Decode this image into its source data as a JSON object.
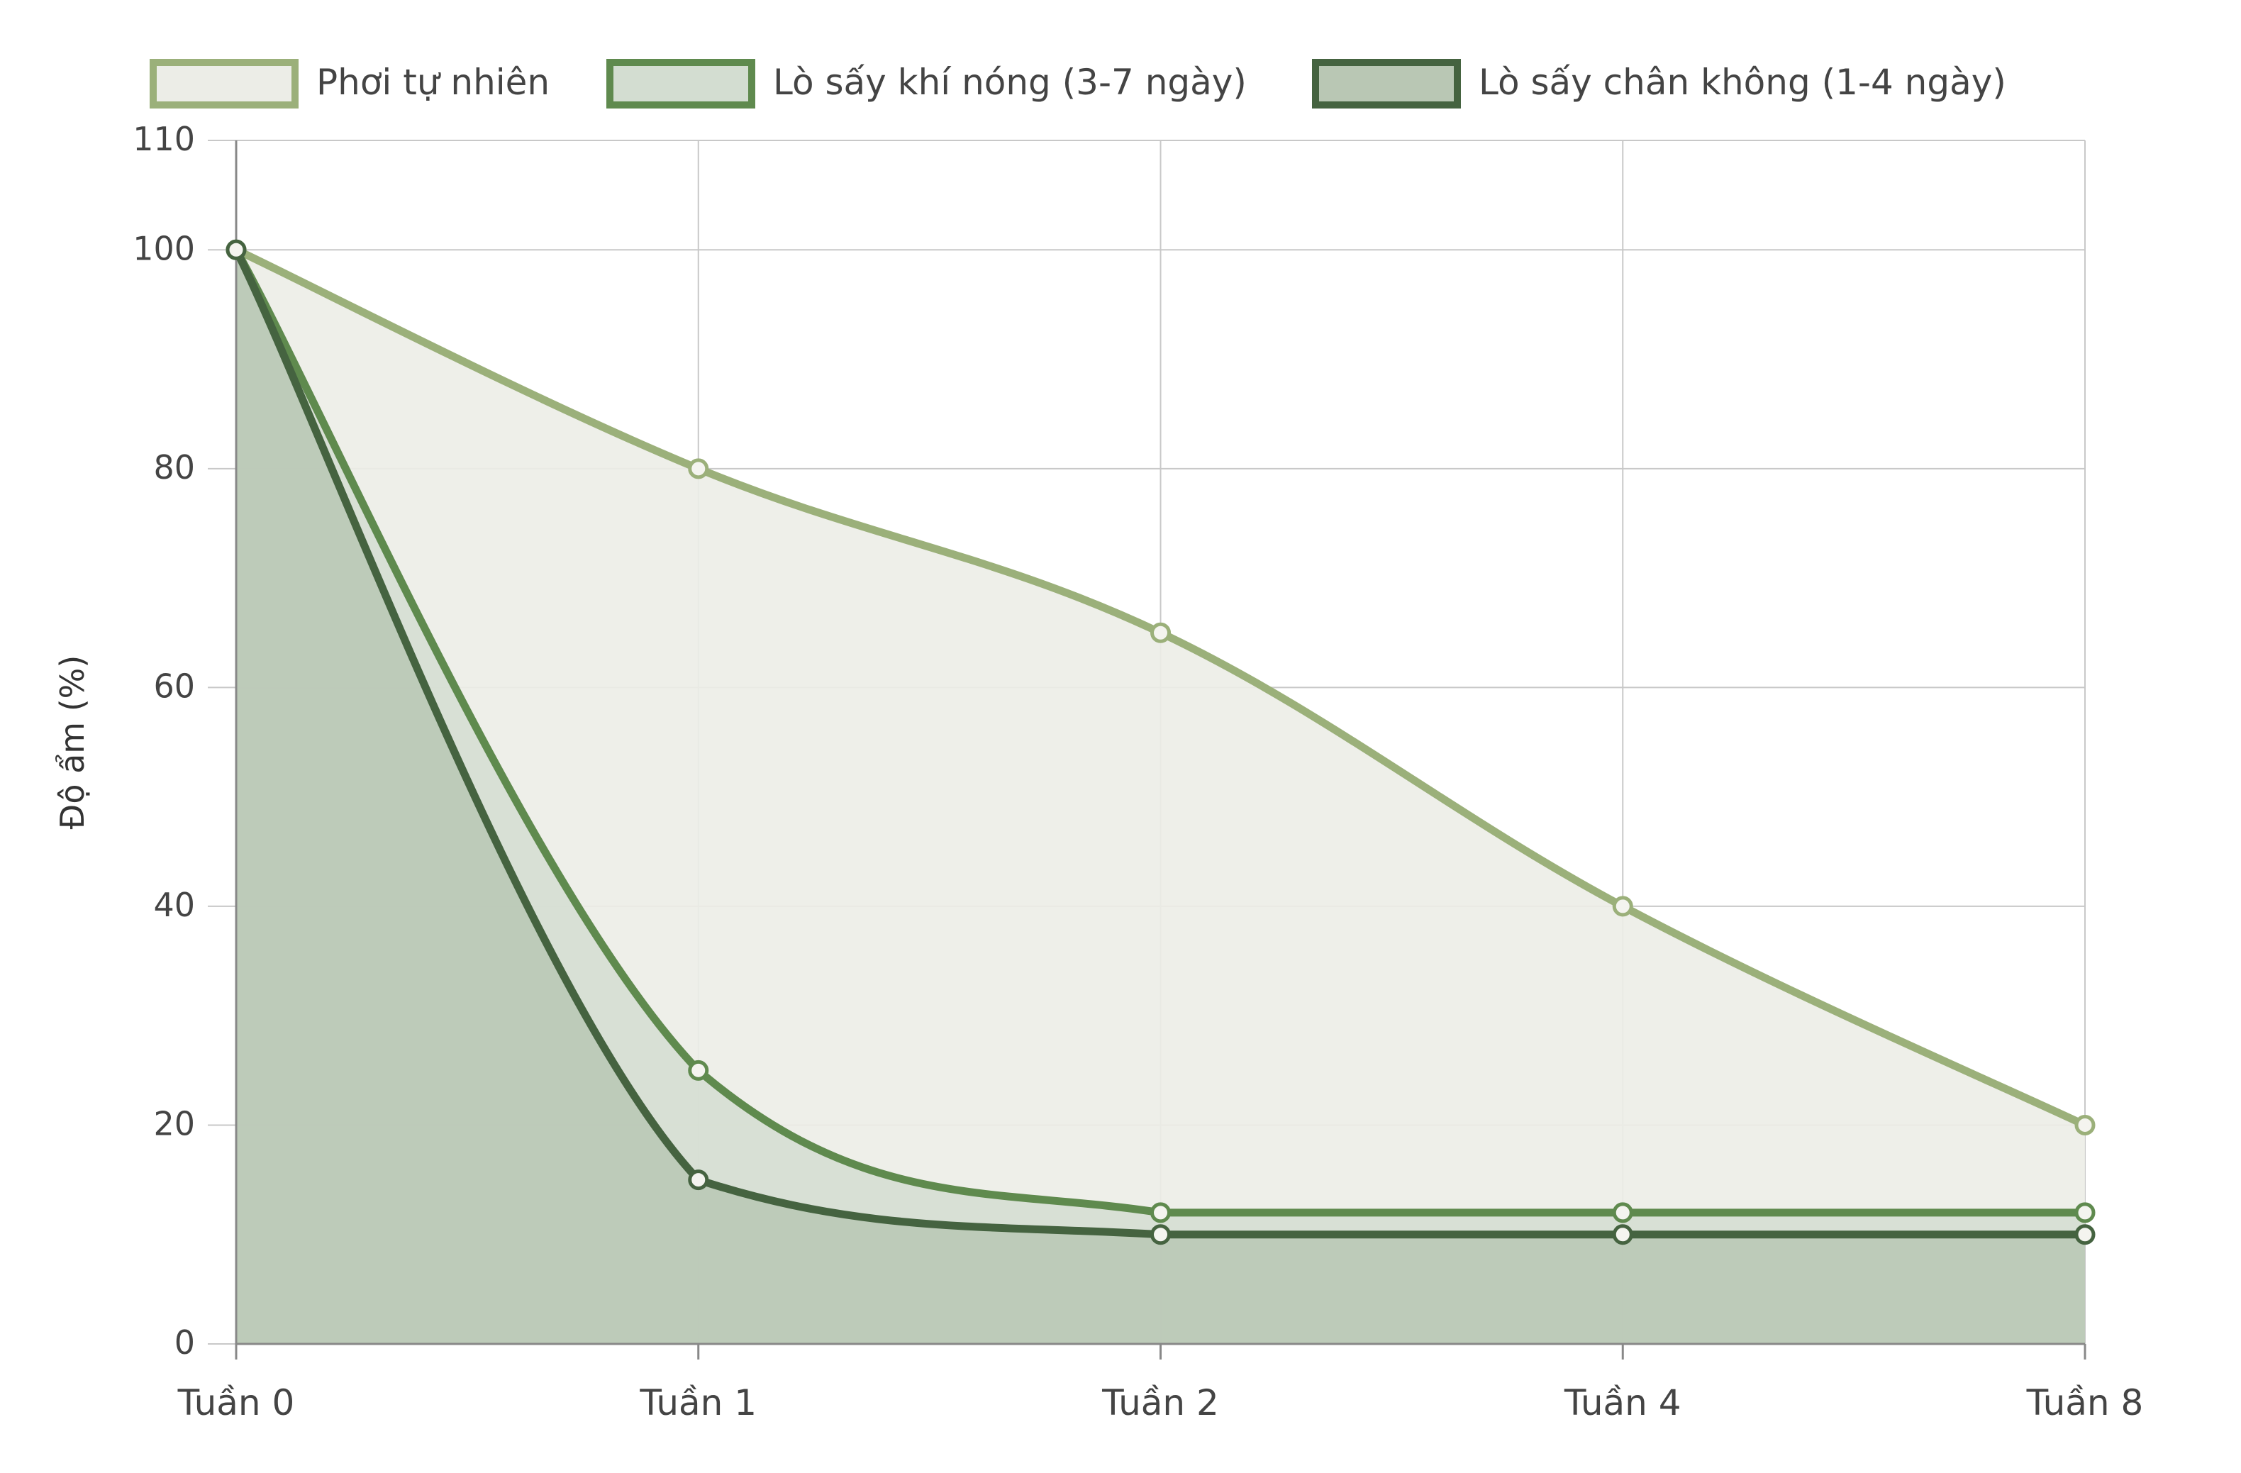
{
  "chart_data": {
    "type": "line",
    "categories": [
      "Tuần 0",
      "Tuần 1",
      "Tuần 2",
      "Tuần 4",
      "Tuần 8"
    ],
    "ylabel": "Độ ẩm (%)",
    "xlabel": "",
    "title": "",
    "ylim": [
      0,
      110
    ],
    "yticks": [
      0,
      20,
      40,
      60,
      80,
      100,
      110
    ],
    "grid": true,
    "legend_position": "top",
    "fill_area": true,
    "series": [
      {
        "name": "Phơi tự nhiên",
        "values": [
          100,
          80,
          65,
          40,
          20
        ],
        "color": "#9bb07a",
        "fill": "#ecede7"
      },
      {
        "name": "Lò sấy khí nóng (3-7 ngày)",
        "values": [
          100,
          25,
          12,
          12,
          12
        ],
        "color": "#5f8a4e",
        "fill": "#d3ddd1"
      },
      {
        "name": "Lò sấy chân không (1-4 ngày)",
        "values": [
          100,
          15,
          10,
          10,
          10
        ],
        "color": "#456340",
        "fill": "#b9c7b4"
      }
    ]
  }
}
